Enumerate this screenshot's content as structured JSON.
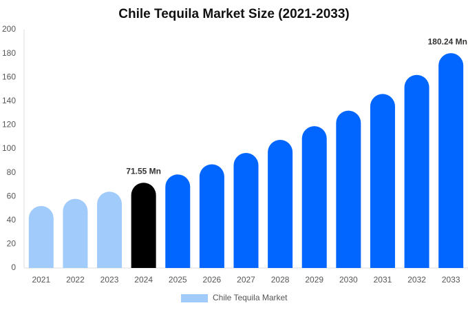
{
  "chart_data": {
    "type": "bar",
    "title": "Chile Tequila Market Size (2021-2033)",
    "categories": [
      "2021",
      "2022",
      "2023",
      "2024",
      "2025",
      "2026",
      "2027",
      "2028",
      "2029",
      "2030",
      "2031",
      "2032",
      "2033"
    ],
    "series": [
      {
        "name": "Chile Tequila Market",
        "color": "#a0cbfa",
        "colors": [
          "#a0cbfa",
          "#a0cbfa",
          "#a0cbfa",
          "#000000",
          "#0066ff",
          "#0066ff",
          "#0066ff",
          "#0066ff",
          "#0066ff",
          "#0066ff",
          "#0066ff",
          "#0066ff",
          "#0066ff"
        ],
        "values": [
          52,
          58,
          64,
          71.55,
          78.5,
          87,
          96.5,
          107.5,
          119,
          132,
          146,
          162,
          180.24
        ],
        "value_labels": [
          null,
          null,
          null,
          "71.55 Mn",
          null,
          null,
          null,
          null,
          null,
          null,
          null,
          null,
          "180.24 Mn"
        ]
      }
    ],
    "ylim": [
      0,
      200
    ],
    "yticks": [
      0,
      20,
      40,
      60,
      80,
      100,
      120,
      140,
      160,
      180,
      200
    ],
    "grid": false,
    "legend": "bottom"
  }
}
